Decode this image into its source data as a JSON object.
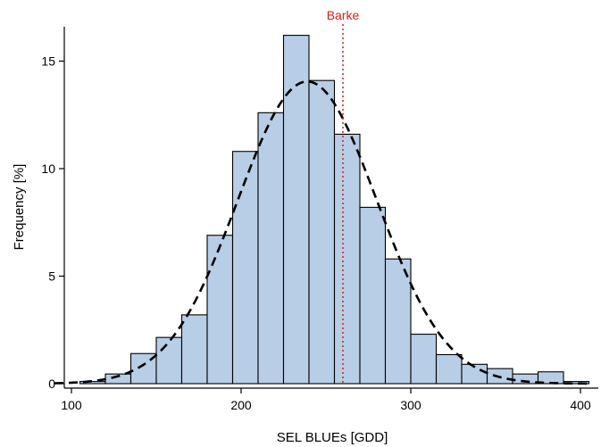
{
  "chart_data": {
    "type": "bar",
    "subtype": "histogram",
    "xlabel": "SEL BLUEs [GDD]",
    "ylabel": "Frequency [%]",
    "xlim": [
      100,
      405
    ],
    "ylim": [
      0,
      16.5
    ],
    "xticks": [
      100,
      200,
      300,
      400
    ],
    "yticks": [
      0,
      5,
      10,
      15
    ],
    "bin_width": 15,
    "bins": [
      {
        "start": 105,
        "end": 120,
        "value": 0.1
      },
      {
        "start": 120,
        "end": 135,
        "value": 0.45
      },
      {
        "start": 135,
        "end": 150,
        "value": 1.4
      },
      {
        "start": 150,
        "end": 165,
        "value": 2.15
      },
      {
        "start": 165,
        "end": 180,
        "value": 3.2
      },
      {
        "start": 180,
        "end": 195,
        "value": 6.9
      },
      {
        "start": 195,
        "end": 210,
        "value": 10.8
      },
      {
        "start": 210,
        "end": 225,
        "value": 12.6
      },
      {
        "start": 225,
        "end": 240,
        "value": 16.2
      },
      {
        "start": 240,
        "end": 255,
        "value": 14.1
      },
      {
        "start": 255,
        "end": 270,
        "value": 11.6
      },
      {
        "start": 270,
        "end": 285,
        "value": 8.2
      },
      {
        "start": 285,
        "end": 300,
        "value": 5.8
      },
      {
        "start": 300,
        "end": 315,
        "value": 2.3
      },
      {
        "start": 315,
        "end": 330,
        "value": 1.35
      },
      {
        "start": 330,
        "end": 345,
        "value": 0.9
      },
      {
        "start": 345,
        "end": 360,
        "value": 0.7
      },
      {
        "start": 360,
        "end": 375,
        "value": 0.45
      },
      {
        "start": 375,
        "end": 390,
        "value": 0.55
      },
      {
        "start": 390,
        "end": 405,
        "value": 0.1
      }
    ],
    "density_curve": {
      "type": "normal",
      "mean": 239,
      "sd": 41,
      "style": "dashed",
      "peak_value": 14.05
    },
    "reference_line": {
      "label": "Barke",
      "x": 260,
      "style": "dotted",
      "color": "#e31a1c"
    },
    "colors": {
      "bar_fill": "#b8cde6",
      "bar_edge": "#000000",
      "curve": "#000000"
    },
    "grid": false
  }
}
